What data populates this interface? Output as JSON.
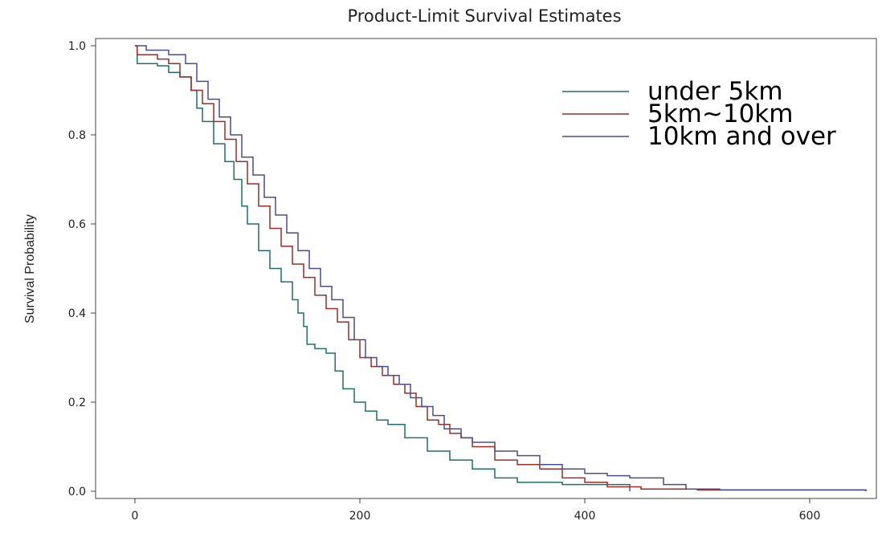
{
  "chart_data": {
    "type": "line",
    "title": "Product-Limit Survival Estimates",
    "xlabel": "",
    "ylabel": "Survival Probability",
    "xlim": [
      0,
      650
    ],
    "ylim": [
      0,
      1
    ],
    "x_ticks": [
      0,
      200,
      400,
      600
    ],
    "x_tick_labels": [
      "0",
      "200",
      "400",
      "600"
    ],
    "y_ticks": [
      0,
      0.2,
      0.4,
      0.6,
      0.8,
      1.0
    ],
    "y_tick_labels": [
      "0.0",
      "0.2",
      "0.4",
      "0.6",
      "0.8",
      "1.0"
    ],
    "grid": false,
    "legend_position": "top-right",
    "series": [
      {
        "name": "under 5km",
        "color": "#1f6f6a",
        "points": [
          [
            0,
            1.0
          ],
          [
            2,
            0.96
          ],
          [
            20,
            0.955
          ],
          [
            30,
            0.94
          ],
          [
            40,
            0.93
          ],
          [
            50,
            0.9
          ],
          [
            55,
            0.86
          ],
          [
            60,
            0.83
          ],
          [
            70,
            0.78
          ],
          [
            80,
            0.74
          ],
          [
            88,
            0.7
          ],
          [
            95,
            0.64
          ],
          [
            100,
            0.6
          ],
          [
            110,
            0.54
          ],
          [
            120,
            0.5
          ],
          [
            130,
            0.47
          ],
          [
            140,
            0.43
          ],
          [
            145,
            0.4
          ],
          [
            150,
            0.37
          ],
          [
            153,
            0.33
          ],
          [
            160,
            0.32
          ],
          [
            170,
            0.31
          ],
          [
            178,
            0.27
          ],
          [
            185,
            0.23
          ],
          [
            195,
            0.2
          ],
          [
            205,
            0.18
          ],
          [
            215,
            0.16
          ],
          [
            225,
            0.15
          ],
          [
            240,
            0.12
          ],
          [
            260,
            0.09
          ],
          [
            280,
            0.07
          ],
          [
            300,
            0.05
          ],
          [
            320,
            0.03
          ],
          [
            340,
            0.02
          ],
          [
            380,
            0.015
          ],
          [
            440,
            0.0
          ]
        ]
      },
      {
        "name": "5km~10km",
        "color": "#9b2d26",
        "points": [
          [
            0,
            1.0
          ],
          [
            2,
            0.98
          ],
          [
            20,
            0.97
          ],
          [
            30,
            0.96
          ],
          [
            40,
            0.93
          ],
          [
            50,
            0.9
          ],
          [
            60,
            0.87
          ],
          [
            70,
            0.83
          ],
          [
            80,
            0.79
          ],
          [
            90,
            0.74
          ],
          [
            100,
            0.69
          ],
          [
            110,
            0.64
          ],
          [
            120,
            0.59
          ],
          [
            130,
            0.55
          ],
          [
            140,
            0.51
          ],
          [
            150,
            0.48
          ],
          [
            160,
            0.44
          ],
          [
            170,
            0.41
          ],
          [
            180,
            0.38
          ],
          [
            190,
            0.34
          ],
          [
            200,
            0.3
          ],
          [
            210,
            0.28
          ],
          [
            220,
            0.26
          ],
          [
            230,
            0.24
          ],
          [
            240,
            0.22
          ],
          [
            250,
            0.19
          ],
          [
            260,
            0.16
          ],
          [
            270,
            0.15
          ],
          [
            280,
            0.13
          ],
          [
            290,
            0.12
          ],
          [
            300,
            0.1
          ],
          [
            320,
            0.07
          ],
          [
            340,
            0.06
          ],
          [
            360,
            0.05
          ],
          [
            380,
            0.03
          ],
          [
            400,
            0.02
          ],
          [
            420,
            0.01
          ],
          [
            450,
            0.005
          ],
          [
            500,
            0.003
          ],
          [
            650,
            0.0
          ]
        ]
      },
      {
        "name": "10km and over",
        "color": "#4b4b8f",
        "points": [
          [
            0,
            1.0
          ],
          [
            10,
            0.99
          ],
          [
            30,
            0.98
          ],
          [
            45,
            0.96
          ],
          [
            55,
            0.92
          ],
          [
            65,
            0.88
          ],
          [
            75,
            0.84
          ],
          [
            85,
            0.8
          ],
          [
            95,
            0.75
          ],
          [
            105,
            0.71
          ],
          [
            115,
            0.66
          ],
          [
            125,
            0.62
          ],
          [
            135,
            0.58
          ],
          [
            145,
            0.54
          ],
          [
            155,
            0.5
          ],
          [
            165,
            0.46
          ],
          [
            175,
            0.43
          ],
          [
            185,
            0.39
          ],
          [
            195,
            0.34
          ],
          [
            205,
            0.3
          ],
          [
            215,
            0.28
          ],
          [
            225,
            0.26
          ],
          [
            235,
            0.24
          ],
          [
            245,
            0.21
          ],
          [
            255,
            0.19
          ],
          [
            265,
            0.17
          ],
          [
            275,
            0.14
          ],
          [
            290,
            0.12
          ],
          [
            300,
            0.11
          ],
          [
            320,
            0.09
          ],
          [
            340,
            0.08
          ],
          [
            360,
            0.06
          ],
          [
            380,
            0.05
          ],
          [
            400,
            0.04
          ],
          [
            420,
            0.035
          ],
          [
            440,
            0.03
          ],
          [
            470,
            0.015
          ],
          [
            490,
            0.005
          ],
          [
            520,
            0.003
          ],
          [
            650,
            0.0
          ]
        ]
      }
    ]
  }
}
